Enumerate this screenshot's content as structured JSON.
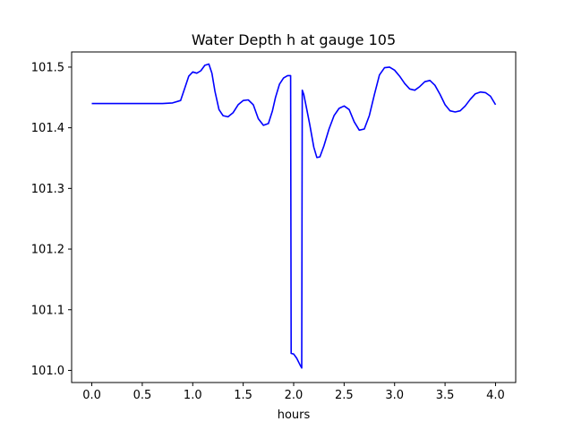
{
  "chart_data": {
    "type": "line",
    "title": "Water Depth h at gauge 105",
    "xlabel": "hours",
    "ylabel": "",
    "xlim": [
      -0.2,
      4.2
    ],
    "ylim": [
      100.98,
      101.525
    ],
    "xticks": [
      0.0,
      0.5,
      1.0,
      1.5,
      2.0,
      2.5,
      3.0,
      3.5,
      4.0
    ],
    "xtick_labels": [
      "0.0",
      "0.5",
      "1.0",
      "1.5",
      "2.0",
      "2.5",
      "3.0",
      "3.5",
      "4.0"
    ],
    "yticks": [
      101.0,
      101.1,
      101.2,
      101.3,
      101.4,
      101.5
    ],
    "ytick_labels": [
      "101.0",
      "101.1",
      "101.2",
      "101.3",
      "101.4",
      "101.5"
    ],
    "grid": false,
    "legend": "none",
    "series": [
      {
        "color": "#0000ff",
        "x": [
          0.0,
          0.2,
          0.4,
          0.6,
          0.7,
          0.8,
          0.88,
          0.92,
          0.96,
          1.0,
          1.04,
          1.08,
          1.12,
          1.16,
          1.19,
          1.22,
          1.26,
          1.3,
          1.35,
          1.4,
          1.45,
          1.5,
          1.55,
          1.6,
          1.65,
          1.7,
          1.75,
          1.79,
          1.82,
          1.86,
          1.9,
          1.94,
          1.97,
          1.975,
          2.0,
          2.03,
          2.06,
          2.08,
          2.085,
          2.1,
          2.13,
          2.16,
          2.2,
          2.23,
          2.26,
          2.3,
          2.35,
          2.4,
          2.45,
          2.5,
          2.55,
          2.6,
          2.65,
          2.7,
          2.75,
          2.8,
          2.85,
          2.9,
          2.95,
          3.0,
          3.05,
          3.1,
          3.15,
          3.2,
          3.25,
          3.3,
          3.35,
          3.4,
          3.45,
          3.5,
          3.55,
          3.6,
          3.65,
          3.7,
          3.75,
          3.8,
          3.85,
          3.9,
          3.95,
          4.0
        ],
        "y": [
          101.44,
          101.44,
          101.44,
          101.44,
          101.44,
          101.441,
          101.445,
          101.465,
          101.485,
          101.492,
          101.49,
          101.494,
          101.503,
          101.505,
          101.49,
          101.46,
          101.43,
          101.42,
          101.418,
          101.425,
          101.438,
          101.445,
          101.446,
          101.438,
          101.415,
          101.404,
          101.407,
          101.428,
          101.45,
          101.472,
          101.482,
          101.486,
          101.486,
          101.028,
          101.027,
          101.02,
          101.01,
          101.004,
          101.462,
          101.455,
          101.43,
          101.405,
          101.368,
          101.351,
          101.352,
          101.37,
          101.398,
          101.42,
          101.432,
          101.436,
          101.43,
          101.41,
          101.396,
          101.398,
          101.42,
          101.455,
          101.487,
          101.499,
          101.5,
          101.495,
          101.485,
          101.473,
          101.464,
          101.462,
          101.468,
          101.476,
          101.478,
          101.47,
          101.455,
          101.438,
          101.428,
          101.426,
          101.428,
          101.436,
          101.447,
          101.456,
          101.459,
          101.458,
          101.452,
          101.438
        ]
      }
    ]
  }
}
